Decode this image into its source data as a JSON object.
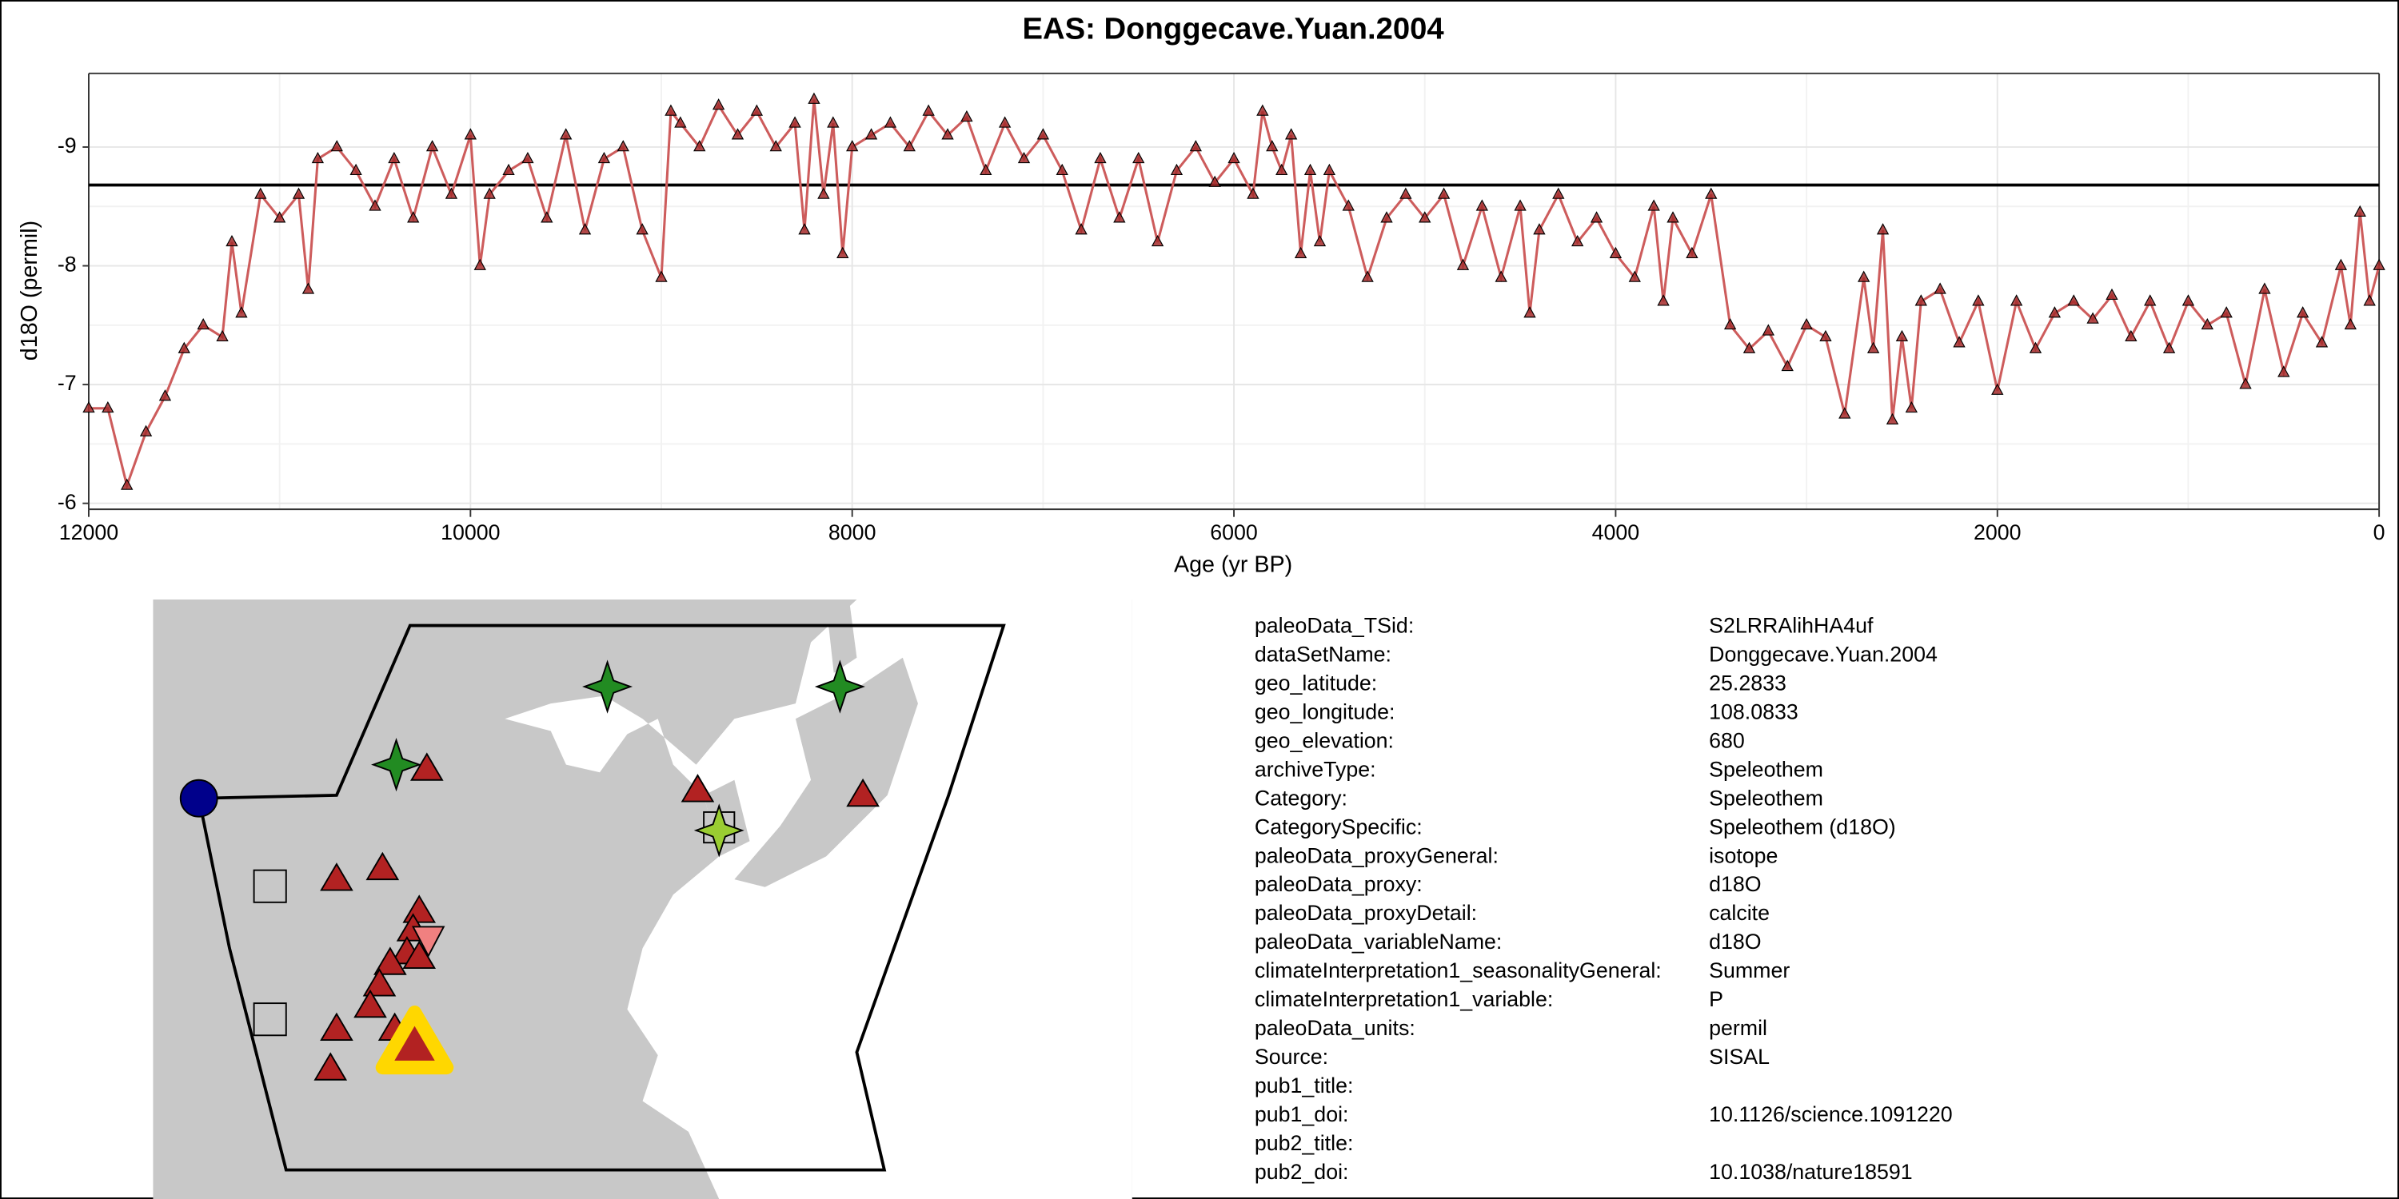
{
  "chart_data": {
    "type": "line",
    "title": "EAS: Donggecave.Yuan.2004",
    "xlabel": "Age (yr BP)",
    "ylabel": "d18O (permil)",
    "xlim": [
      12000,
      0
    ],
    "xticks": [
      12000,
      10000,
      8000,
      6000,
      4000,
      2000,
      0
    ],
    "ylim": [
      -5.95,
      -9.62
    ],
    "yticks": [
      -9,
      -8,
      -7,
      -6
    ],
    "grid": true,
    "hline": -8.68,
    "color": "#cd5c5c",
    "marker_color": "#a52a2a",
    "x": [
      12000,
      11900,
      11800,
      11700,
      11600,
      11500,
      11400,
      11300,
      11250,
      11200,
      11100,
      11000,
      10900,
      10850,
      10800,
      10700,
      10600,
      10500,
      10400,
      10300,
      10200,
      10100,
      10000,
      9950,
      9900,
      9800,
      9700,
      9600,
      9500,
      9400,
      9300,
      9200,
      9100,
      9000,
      8950,
      8900,
      8800,
      8700,
      8600,
      8500,
      8400,
      8300,
      8250,
      8200,
      8150,
      8100,
      8050,
      8000,
      7900,
      7800,
      7700,
      7600,
      7500,
      7400,
      7300,
      7200,
      7100,
      7000,
      6900,
      6800,
      6700,
      6600,
      6500,
      6400,
      6300,
      6200,
      6100,
      6000,
      5900,
      5850,
      5800,
      5750,
      5700,
      5650,
      5600,
      5550,
      5500,
      5400,
      5300,
      5200,
      5100,
      5000,
      4900,
      4800,
      4700,
      4600,
      4500,
      4450,
      4400,
      4300,
      4200,
      4100,
      4000,
      3900,
      3800,
      3750,
      3700,
      3600,
      3500,
      3400,
      3300,
      3200,
      3100,
      3000,
      2900,
      2800,
      2700,
      2650,
      2600,
      2550,
      2500,
      2450,
      2400,
      2300,
      2200,
      2100,
      2000,
      1900,
      1800,
      1700,
      1600,
      1500,
      1400,
      1300,
      1200,
      1100,
      1000,
      900,
      800,
      700,
      600,
      500,
      400,
      300,
      200,
      150,
      100,
      50,
      0
    ],
    "values": [
      -6.8,
      -6.8,
      -6.15,
      -6.6,
      -6.9,
      -7.3,
      -7.5,
      -7.4,
      -8.2,
      -7.6,
      -8.6,
      -8.4,
      -8.6,
      -7.8,
      -8.9,
      -9.0,
      -8.8,
      -8.5,
      -8.9,
      -8.4,
      -9.0,
      -8.6,
      -9.1,
      -8.0,
      -8.6,
      -8.8,
      -8.9,
      -8.4,
      -9.1,
      -8.3,
      -8.9,
      -9.0,
      -8.3,
      -7.9,
      -9.3,
      -9.2,
      -9.0,
      -9.35,
      -9.1,
      -9.3,
      -9.0,
      -9.2,
      -8.3,
      -9.4,
      -8.6,
      -9.2,
      -8.1,
      -9.0,
      -9.1,
      -9.2,
      -9.0,
      -9.3,
      -9.1,
      -9.25,
      -8.8,
      -9.2,
      -8.9,
      -9.1,
      -8.8,
      -8.3,
      -8.9,
      -8.4,
      -8.9,
      -8.2,
      -8.8,
      -9.0,
      -8.7,
      -8.9,
      -8.6,
      -9.3,
      -9.0,
      -8.8,
      -9.1,
      -8.1,
      -8.8,
      -8.2,
      -8.8,
      -8.5,
      -7.9,
      -8.4,
      -8.6,
      -8.4,
      -8.6,
      -8.0,
      -8.5,
      -7.9,
      -8.5,
      -7.6,
      -8.3,
      -8.6,
      -8.2,
      -8.4,
      -8.1,
      -7.9,
      -8.5,
      -7.7,
      -8.4,
      -8.1,
      -8.6,
      -7.5,
      -7.3,
      -7.45,
      -7.15,
      -7.5,
      -7.4,
      -6.75,
      -7.9,
      -7.3,
      -8.3,
      -6.7,
      -7.4,
      -6.8,
      -7.7,
      -7.8,
      -7.35,
      -7.7,
      -6.95,
      -7.7,
      -7.3,
      -7.6,
      -7.7,
      -7.55,
      -7.75,
      -7.4,
      -7.7,
      -7.3,
      -7.7,
      -7.5,
      -7.6,
      -7.0,
      -7.8,
      -7.1,
      -7.6,
      -7.35,
      -8.0,
      -7.5,
      -8.45,
      -7.7,
      -8.0
    ]
  },
  "metadata": [
    [
      "paleoData_TSid:",
      "S2LRRAlihHA4uf"
    ],
    [
      "dataSetName:",
      "Donggecave.Yuan.2004"
    ],
    [
      "geo_latitude:",
      "25.2833"
    ],
    [
      "geo_longitude:",
      "108.0833"
    ],
    [
      "geo_elevation:",
      "680"
    ],
    [
      "archiveType:",
      "Speleothem"
    ],
    [
      "Category:",
      "Speleothem"
    ],
    [
      "CategorySpecific:",
      "Speleothem (d18O)"
    ],
    [
      "paleoData_proxyGeneral:",
      "isotope"
    ],
    [
      "paleoData_proxy:",
      "d18O"
    ],
    [
      "paleoData_proxyDetail:",
      "calcite"
    ],
    [
      "paleoData_variableName:",
      "d18O"
    ],
    [
      "climateInterpretation1_seasonalityGeneral:",
      "Summer"
    ],
    [
      "climateInterpretation1_variable:",
      "P"
    ],
    [
      "paleoData_units:",
      "permil"
    ],
    [
      "Source:",
      "SISAL"
    ],
    [
      "pub1_title:"
    ],
    [
      "pub1_doi:",
      "10.1126/science.1091220"
    ],
    [
      "pub2_title:"
    ],
    [
      "pub2_doi:",
      "10.1038/nature18591"
    ]
  ]
}
